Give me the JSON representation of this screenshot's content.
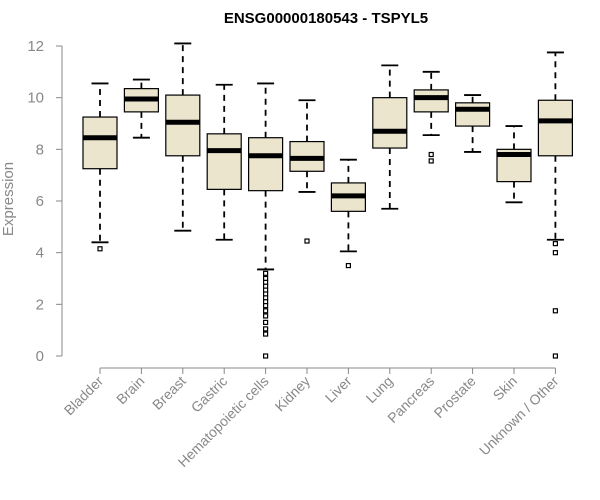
{
  "chart_data": {
    "type": "boxplot",
    "title": "ENSG00000180543 - TSPYL5",
    "ylabel": "Expression",
    "xlabel": "",
    "ylim": [
      0,
      12
    ],
    "yticks": [
      0,
      2,
      4,
      6,
      8,
      10,
      12
    ],
    "grid": false,
    "colors": {
      "box_fill": "#ece5ce",
      "box_stroke": "#000000",
      "axis": "#888888"
    },
    "categories": [
      "Bladder",
      "Brain",
      "Breast",
      "Gastric",
      "Hematopoietic cells",
      "Kidney",
      "Liver",
      "Lung",
      "Pancreas",
      "Prostate",
      "Skin",
      "Unknown / Other"
    ],
    "boxes": [
      {
        "category": "Bladder",
        "q1": 7.25,
        "median": 8.45,
        "q3": 9.25,
        "whisker_low": 4.4,
        "whisker_high": 10.55,
        "outliers": [
          4.15
        ]
      },
      {
        "category": "Brain",
        "q1": 9.45,
        "median": 9.95,
        "q3": 10.35,
        "whisker_low": 8.45,
        "whisker_high": 10.7,
        "outliers": []
      },
      {
        "category": "Breast",
        "q1": 7.75,
        "median": 9.05,
        "q3": 10.1,
        "whisker_low": 4.85,
        "whisker_high": 12.1,
        "outliers": []
      },
      {
        "category": "Gastric",
        "q1": 6.45,
        "median": 7.95,
        "q3": 8.6,
        "whisker_low": 4.5,
        "whisker_high": 10.5,
        "outliers": []
      },
      {
        "category": "Hematopoietic cells",
        "q1": 6.4,
        "median": 7.75,
        "q3": 8.45,
        "whisker_low": 3.35,
        "whisker_high": 10.55,
        "outliers": [
          3.2,
          3.0,
          2.85,
          2.7,
          2.55,
          2.4,
          2.25,
          2.1,
          1.95,
          1.75,
          1.55,
          1.3,
          1.05,
          0.85,
          0.0
        ]
      },
      {
        "category": "Kidney",
        "q1": 7.15,
        "median": 7.65,
        "q3": 8.3,
        "whisker_low": 6.35,
        "whisker_high": 9.9,
        "outliers": [
          4.45
        ]
      },
      {
        "category": "Liver",
        "q1": 5.6,
        "median": 6.2,
        "q3": 6.7,
        "whisker_low": 4.05,
        "whisker_high": 7.6,
        "outliers": [
          3.5
        ]
      },
      {
        "category": "Lung",
        "q1": 8.05,
        "median": 8.7,
        "q3": 10.0,
        "whisker_low": 5.7,
        "whisker_high": 11.25,
        "outliers": []
      },
      {
        "category": "Pancreas",
        "q1": 9.45,
        "median": 10.0,
        "q3": 10.3,
        "whisker_low": 8.55,
        "whisker_high": 11.0,
        "outliers": [
          7.8,
          7.55
        ]
      },
      {
        "category": "Prostate",
        "q1": 8.9,
        "median": 9.55,
        "q3": 9.8,
        "whisker_low": 7.9,
        "whisker_high": 10.1,
        "outliers": []
      },
      {
        "category": "Skin",
        "q1": 6.75,
        "median": 7.8,
        "q3": 8.0,
        "whisker_low": 5.95,
        "whisker_high": 8.9,
        "outliers": []
      },
      {
        "category": "Unknown / Other",
        "q1": 7.75,
        "median": 9.1,
        "q3": 9.9,
        "whisker_low": 4.5,
        "whisker_high": 11.75,
        "outliers": [
          4.35,
          4.0,
          1.75,
          0.0
        ]
      }
    ]
  }
}
